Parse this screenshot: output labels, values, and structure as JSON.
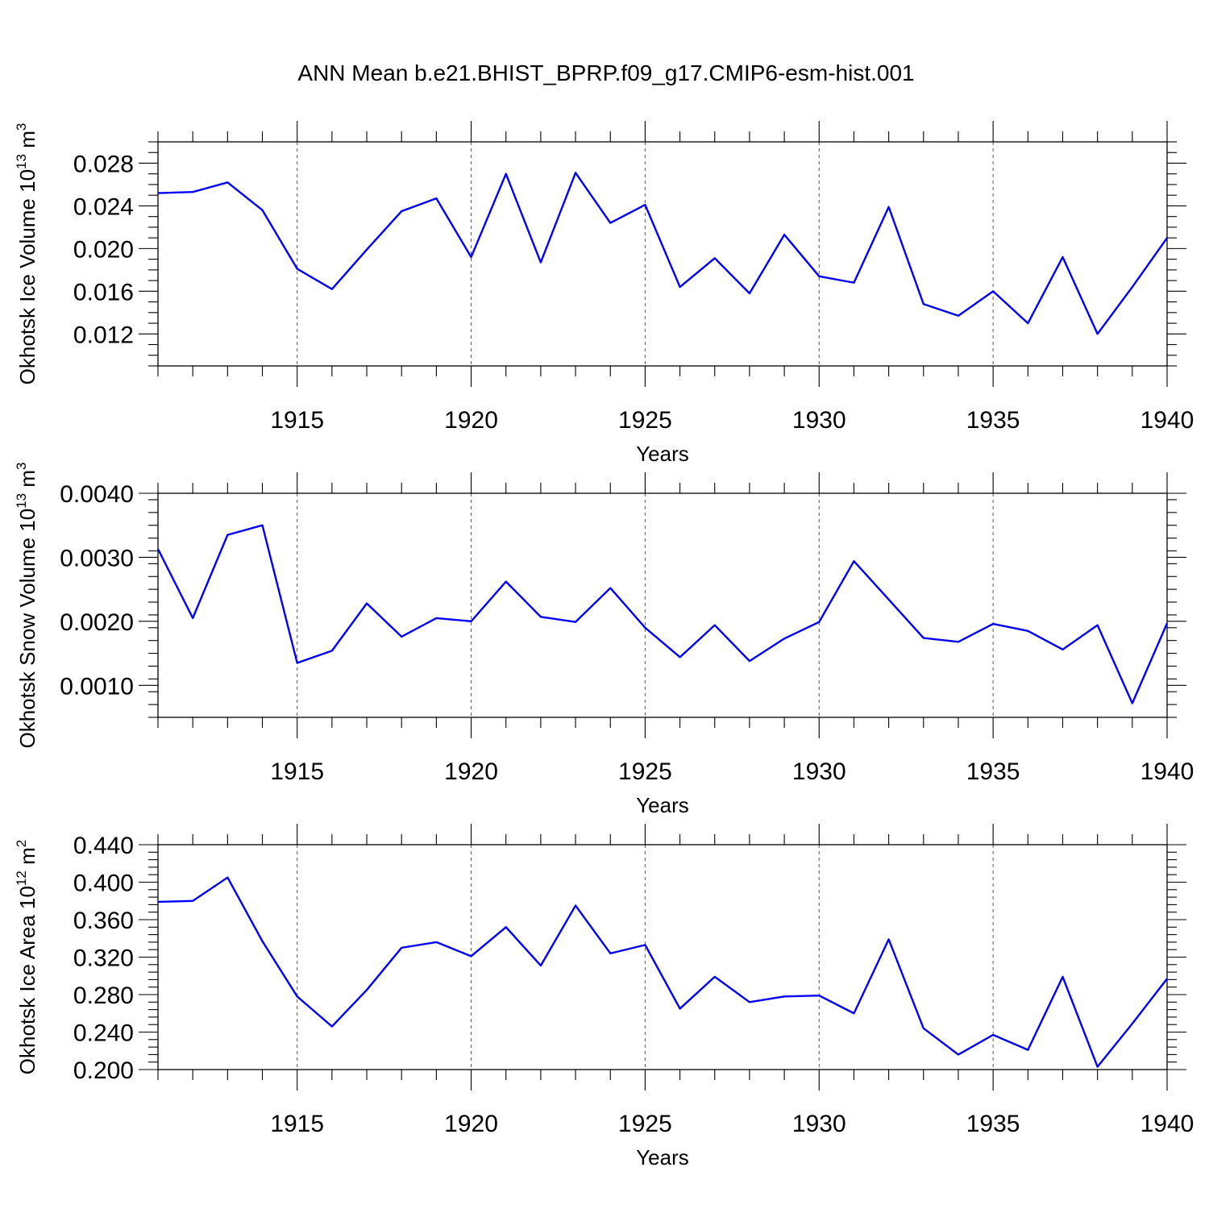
{
  "title": "ANN Mean b.e21.BHIST_BPRP.f09_g17.CMIP6-esm-hist.001",
  "chart_data": [
    {
      "type": "line",
      "id": "ice-volume",
      "ylabel_main": "Okhotsk Ice Volume 10",
      "ylabel_exp": "13",
      "ylabel_unit": " m",
      "ylabel_unit_exp": "3",
      "xlabel": "Years",
      "xlim": [
        1911,
        1940
      ],
      "ylim": [
        0.009,
        0.03
      ],
      "yticks": [
        0.012,
        0.016,
        0.02,
        0.024,
        0.028
      ],
      "ytick_labels": [
        "0.012",
        "0.016",
        "0.020",
        "0.024",
        "0.028"
      ],
      "yminor_step": 0.001,
      "xticks": [
        1915,
        1920,
        1925,
        1930,
        1935,
        1940
      ],
      "xtick_labels": [
        "1915",
        "1920",
        "1925",
        "1930",
        "1935",
        "1940"
      ],
      "x": [
        1911,
        1912,
        1913,
        1914,
        1915,
        1916,
        1917,
        1918,
        1919,
        1920,
        1921,
        1922,
        1923,
        1924,
        1925,
        1926,
        1927,
        1928,
        1929,
        1930,
        1931,
        1932,
        1933,
        1934,
        1935,
        1936,
        1937,
        1938,
        1939,
        1940
      ],
      "series": [
        {
          "name": "Ice Volume",
          "color": "#0000ff",
          "values": [
            0.0252,
            0.0253,
            0.0262,
            0.0236,
            0.0181,
            0.0162,
            0.0199,
            0.0235,
            0.0247,
            0.0192,
            0.027,
            0.0187,
            0.0271,
            0.0224,
            0.0241,
            0.0164,
            0.0191,
            0.0158,
            0.0213,
            0.0174,
            0.0168,
            0.0239,
            0.0148,
            0.0137,
            0.016,
            0.013,
            0.0192,
            0.012,
            0.0164,
            0.021
          ]
        }
      ]
    },
    {
      "type": "line",
      "id": "snow-volume",
      "ylabel_main": "Okhotsk Snow Volume 10",
      "ylabel_exp": "13",
      "ylabel_unit": " m",
      "ylabel_unit_exp": "3",
      "xlabel": "Years",
      "xlim": [
        1911,
        1940
      ],
      "ylim": [
        0.0005,
        0.004
      ],
      "yticks": [
        0.001,
        0.002,
        0.003,
        0.004
      ],
      "ytick_labels": [
        "0.0010",
        "0.0020",
        "0.0030",
        "0.0040"
      ],
      "yminor_step": 0.0002,
      "xticks": [
        1915,
        1920,
        1925,
        1930,
        1935,
        1940
      ],
      "xtick_labels": [
        "1915",
        "1920",
        "1925",
        "1930",
        "1935",
        "1940"
      ],
      "x": [
        1911,
        1912,
        1913,
        1914,
        1915,
        1916,
        1917,
        1918,
        1919,
        1920,
        1921,
        1922,
        1923,
        1924,
        1925,
        1926,
        1927,
        1928,
        1929,
        1930,
        1931,
        1932,
        1933,
        1934,
        1935,
        1936,
        1937,
        1938,
        1939,
        1940
      ],
      "series": [
        {
          "name": "Snow Volume",
          "color": "#0000ff",
          "values": [
            0.00313,
            0.00205,
            0.00335,
            0.0035,
            0.00135,
            0.00154,
            0.00228,
            0.00176,
            0.00205,
            0.002,
            0.00262,
            0.00207,
            0.00199,
            0.00252,
            0.0019,
            0.00144,
            0.00194,
            0.00138,
            0.00173,
            0.00199,
            0.00294,
            0.00234,
            0.00174,
            0.00168,
            0.00196,
            0.00185,
            0.00156,
            0.00194,
            0.00072,
            0.00197
          ]
        }
      ]
    },
    {
      "type": "line",
      "id": "ice-area",
      "ylabel_main": "Okhotsk Ice Area 10",
      "ylabel_exp": "12",
      "ylabel_unit": " m",
      "ylabel_unit_exp": "2",
      "xlabel": "Years",
      "xlim": [
        1911,
        1940
      ],
      "ylim": [
        0.2,
        0.44
      ],
      "yticks": [
        0.2,
        0.24,
        0.28,
        0.32,
        0.36,
        0.4,
        0.44
      ],
      "ytick_labels": [
        "0.200",
        "0.240",
        "0.280",
        "0.320",
        "0.360",
        "0.400",
        "0.440"
      ],
      "yminor_step": 0.008,
      "xticks": [
        1915,
        1920,
        1925,
        1930,
        1935,
        1940
      ],
      "xtick_labels": [
        "1915",
        "1920",
        "1925",
        "1930",
        "1935",
        "1940"
      ],
      "x": [
        1911,
        1912,
        1913,
        1914,
        1915,
        1916,
        1917,
        1918,
        1919,
        1920,
        1921,
        1922,
        1923,
        1924,
        1925,
        1926,
        1927,
        1928,
        1929,
        1930,
        1931,
        1932,
        1933,
        1934,
        1935,
        1936,
        1937,
        1938,
        1939,
        1940
      ],
      "series": [
        {
          "name": "Ice Area",
          "color": "#0000ff",
          "values": [
            0.379,
            0.38,
            0.405,
            0.337,
            0.278,
            0.246,
            0.285,
            0.33,
            0.336,
            0.321,
            0.352,
            0.311,
            0.375,
            0.324,
            0.333,
            0.265,
            0.299,
            0.272,
            0.278,
            0.279,
            0.26,
            0.339,
            0.244,
            0.216,
            0.237,
            0.221,
            0.299,
            0.203,
            0.249,
            0.297
          ]
        }
      ]
    }
  ]
}
